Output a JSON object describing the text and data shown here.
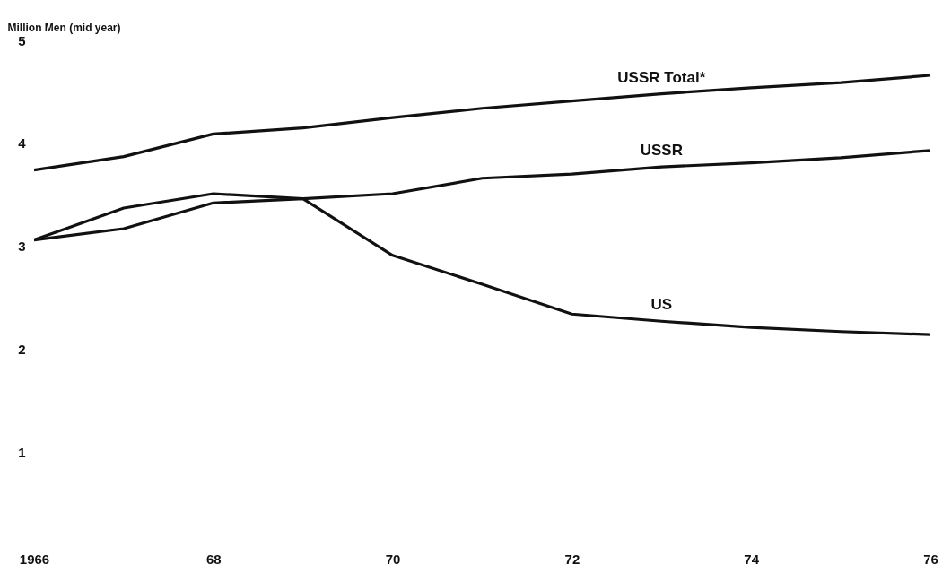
{
  "chart_data": {
    "type": "line",
    "ylabel": "Million Men (mid year)",
    "x": [
      1966,
      1967,
      1968,
      1969,
      1970,
      1971,
      1972,
      1973,
      1974,
      1975,
      1976
    ],
    "xlim": [
      1966,
      1976
    ],
    "xticks": [
      {
        "value": 1966,
        "label": "1966"
      },
      {
        "value": 1968,
        "label": "68"
      },
      {
        "value": 1970,
        "label": "70"
      },
      {
        "value": 1972,
        "label": "72"
      },
      {
        "value": 1974,
        "label": "74"
      },
      {
        "value": 1976,
        "label": "76"
      }
    ],
    "ylim": [
      1,
      5
    ],
    "yticks": [
      1,
      2,
      3,
      4,
      5
    ],
    "grid": false,
    "legend": false,
    "line_style": "solid",
    "marker": "none",
    "series": [
      {
        "name": "USSR Total*",
        "color": "#111111",
        "values": [
          3.74,
          3.87,
          4.09,
          4.15,
          4.25,
          4.34,
          4.41,
          4.48,
          4.54,
          4.59,
          4.66
        ]
      },
      {
        "name": "USSR",
        "color": "#111111",
        "values": [
          3.06,
          3.17,
          3.42,
          3.46,
          3.51,
          3.66,
          3.7,
          3.77,
          3.81,
          3.86,
          3.93
        ]
      },
      {
        "name": "US",
        "color": "#111111",
        "values": [
          3.06,
          3.37,
          3.51,
          3.46,
          2.91,
          2.63,
          2.34,
          2.27,
          2.21,
          2.17,
          2.14
        ]
      }
    ]
  }
}
